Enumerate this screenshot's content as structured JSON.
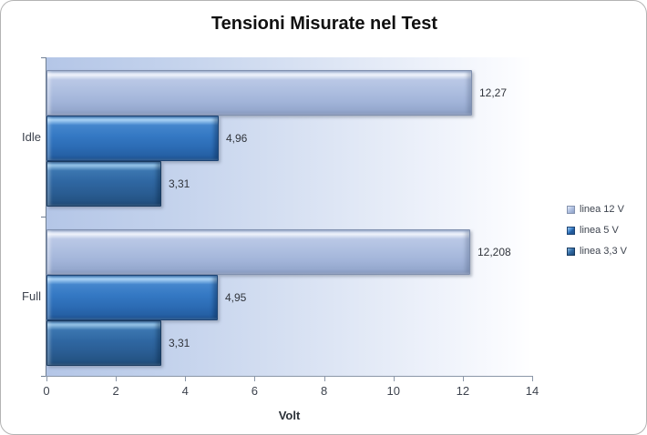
{
  "chart_data": {
    "type": "bar",
    "orientation": "horizontal",
    "title": "Tensioni Misurate nel Test",
    "xlabel": "Volt",
    "xlim": [
      0,
      14
    ],
    "xticks": [
      0,
      2,
      4,
      6,
      8,
      10,
      12,
      14
    ],
    "categories": [
      "Idle",
      "Full"
    ],
    "series": [
      {
        "name": "linea 12 V",
        "color": "#a5b8dc",
        "values": [
          12.27,
          12.208
        ],
        "value_labels": [
          "12,27",
          "12,208"
        ]
      },
      {
        "name": "linea 5 V",
        "color": "#3377c4",
        "values": [
          4.96,
          4.95
        ],
        "value_labels": [
          "4,96",
          "4,95"
        ]
      },
      {
        "name": "linea 3,3 V",
        "color": "#2d639c",
        "values": [
          3.31,
          3.31
        ],
        "value_labels": [
          "3,31",
          "3,31"
        ]
      }
    ],
    "legend_position": "right",
    "grid": false,
    "plot_background": {
      "left": "#b4c6e7",
      "right": "#ffffff"
    }
  }
}
